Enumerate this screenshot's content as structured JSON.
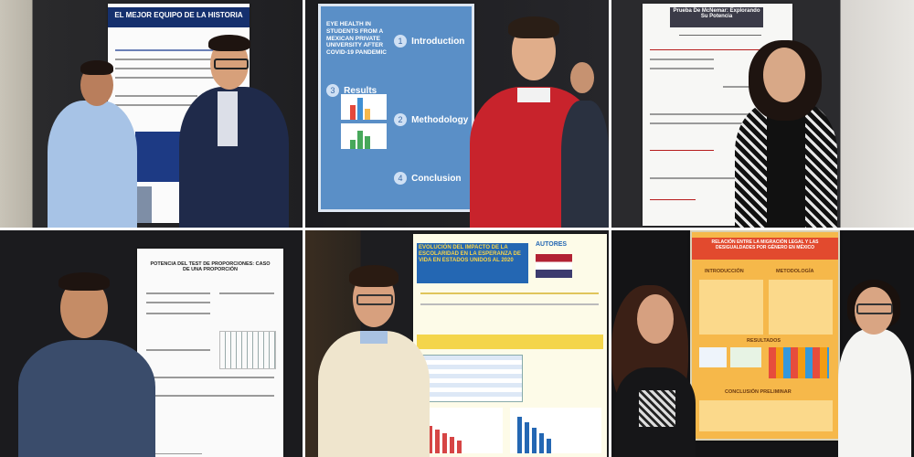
{
  "posters": {
    "p1": {
      "title": "EL MEJOR EQUIPO DE LA HISTORIA"
    },
    "p2": {
      "title": "EYE HEALTH IN STUDENTS FROM A MEXICAN PRIVATE UNIVERSITY AFTER COVID-19 PANDEMIC",
      "sections": [
        {
          "num": "1",
          "label": "Introduction"
        },
        {
          "num": "2",
          "label": "Methodology"
        },
        {
          "num": "3",
          "label": "Results"
        },
        {
          "num": "4",
          "label": "Conclusion"
        }
      ]
    },
    "p3": {
      "title": "Prueba De McNemar: Explorando Su Potencia"
    },
    "p4": {
      "title": "POTENCIA DEL TEST DE PROPORCIONES: CASO DE UNA PROPORCIÓN"
    },
    "p5": {
      "title": "EVOLUCIÓN DEL IMPACTO DE LA ESCOLARIDAD EN LA ESPERANZA DE VIDA EN ESTADOS UNIDOS AL 2020",
      "authors_label": "AUTORES"
    },
    "p6": {
      "title": "RELACIÓN ENTRE LA MIGRACIÓN LEGAL Y LAS DESIGUALDADES POR GÉNERO EN MÉXICO",
      "sections": [
        "INTRODUCCIÓN",
        "METODOLOGÍA",
        "RESULTADOS",
        "CONCLUSIÓN PRELIMINAR"
      ]
    }
  },
  "colors": {
    "red_sweater": "#c8232c",
    "navy": "#1f2a4a",
    "orange_poster": "#f6b84a"
  }
}
